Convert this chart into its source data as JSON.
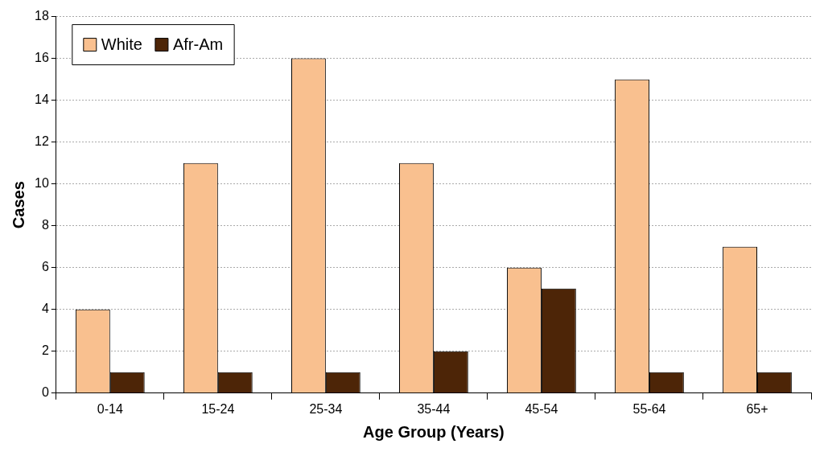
{
  "chart_data": {
    "type": "bar",
    "xlabel": "Age Group (Years)",
    "ylabel": "Cases",
    "categories": [
      "0-14",
      "15-24",
      "25-34",
      "35-44",
      "45-54",
      "55-64",
      "65+"
    ],
    "series": [
      {
        "name": "White",
        "color": "#f9c08f",
        "values": [
          4,
          11,
          16,
          11,
          6,
          15,
          7
        ]
      },
      {
        "name": "Afr-Am",
        "color": "#4d2507",
        "values": [
          1,
          1,
          1,
          2,
          5,
          1,
          1
        ]
      }
    ],
    "ylim": [
      0,
      18
    ],
    "yticks": [
      0,
      2,
      4,
      6,
      8,
      10,
      12,
      14,
      16,
      18
    ],
    "grid": "y",
    "legend": "top left"
  }
}
